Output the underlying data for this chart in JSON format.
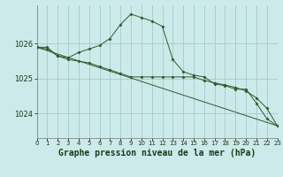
{
  "title": "Graphe pression niveau de la mer (hPa)",
  "background_color": "#cdeaea",
  "grid_color": "#a0cccc",
  "line_color": "#2d5a2d",
  "marker_color": "#2d5a2d",
  "hours": [
    0,
    1,
    2,
    3,
    4,
    5,
    6,
    7,
    8,
    9,
    10,
    11,
    12,
    13,
    14,
    15,
    16,
    17,
    18,
    19,
    20,
    21,
    22,
    23
  ],
  "series1": [
    1025.9,
    1025.9,
    1025.65,
    1025.6,
    1025.75,
    1025.85,
    1025.95,
    1026.15,
    1026.55,
    1026.85,
    1026.75,
    1026.65,
    1026.5,
    1025.55,
    1025.2,
    1025.1,
    1025.05,
    1024.85,
    1024.8,
    1024.7,
    1024.7,
    1024.3,
    1023.85,
    1023.65
  ],
  "series2": [
    1025.9,
    1025.85,
    1025.65,
    1025.55,
    1025.5,
    1025.45,
    1025.35,
    1025.25,
    1025.15,
    1025.05,
    1025.05,
    1025.05,
    1025.05,
    1025.05,
    1025.05,
    1025.05,
    1024.95,
    1024.88,
    1024.82,
    1024.75,
    1024.65,
    1024.45,
    1024.15,
    1023.65
  ],
  "yticks": [
    1024,
    1025,
    1026
  ],
  "ylim": [
    1023.3,
    1027.1
  ],
  "xlim": [
    0,
    23
  ],
  "xlabel_fontsize": 7,
  "ytick_fontsize": 6,
  "xtick_fontsize": 5
}
